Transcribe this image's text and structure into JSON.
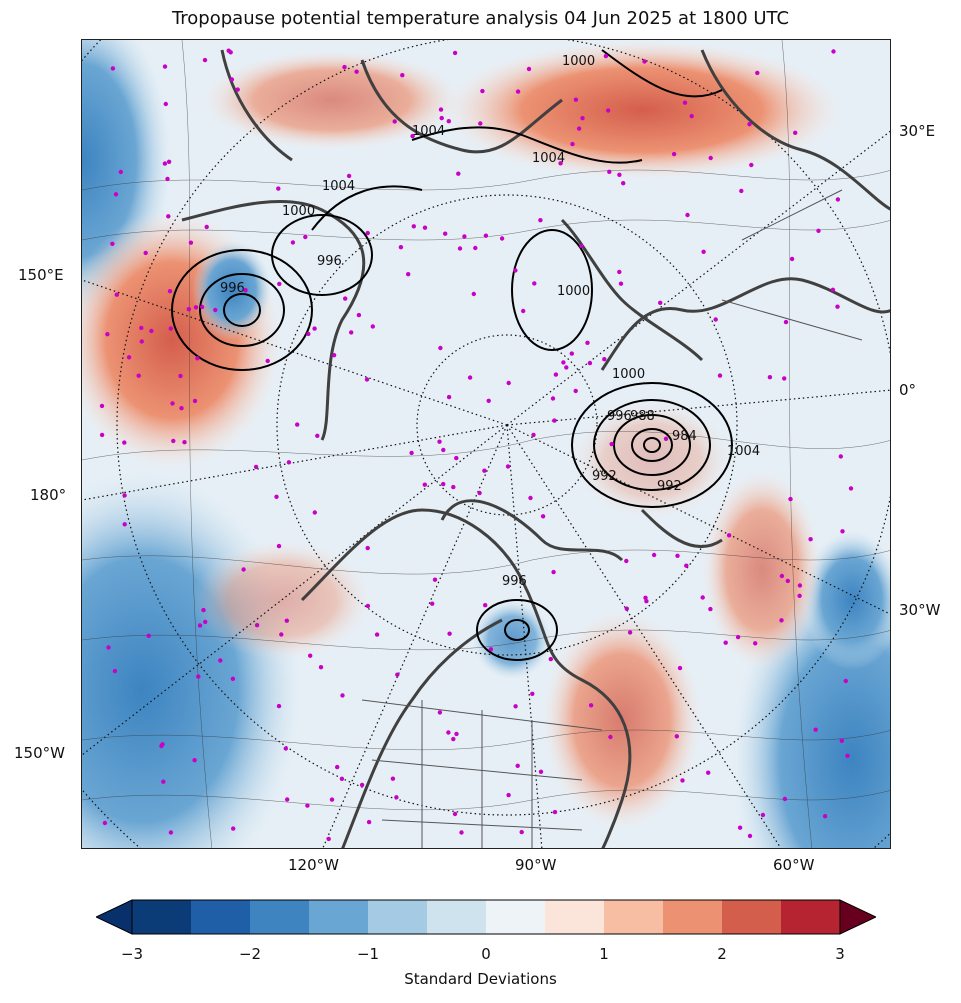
{
  "title": "Tropopause potential temperature analysis 04 Jun 2025 at 1800 UTC",
  "lon_labels_left": [
    "150°E",
    "180°",
    "150°W"
  ],
  "lon_labels_right": [
    "30°E",
    "0°",
    "30°W"
  ],
  "lon_labels_bottom": [
    "120°W",
    "90°W",
    "60°W"
  ],
  "contour_labels": [
    "1004",
    "1004",
    "1004",
    "1000",
    "996",
    "996",
    "1000",
    "1000",
    "996",
    "988",
    "992",
    "984",
    "1004",
    "1000",
    "992",
    "996"
  ],
  "colorbar": {
    "label": "Standard Deviations",
    "ticks": [
      "−3",
      "−2",
      "−1",
      "0",
      "1",
      "2",
      "3"
    ],
    "colors": [
      "#0b3c78",
      "#1f5fa8",
      "#3d84c1",
      "#6aa6d3",
      "#a4cbe3",
      "#cfe3ef",
      "#eef3f7",
      "#fbe4d9",
      "#f7bea3",
      "#ec9273",
      "#d45e4c",
      "#b52430",
      "#7a0e25"
    ],
    "extend_low": "#08306b",
    "extend_high": "#67001f"
  },
  "colors": {
    "station_marker": "#c800c8",
    "coastline": "#404040",
    "pressure_contour": "#000000"
  }
}
